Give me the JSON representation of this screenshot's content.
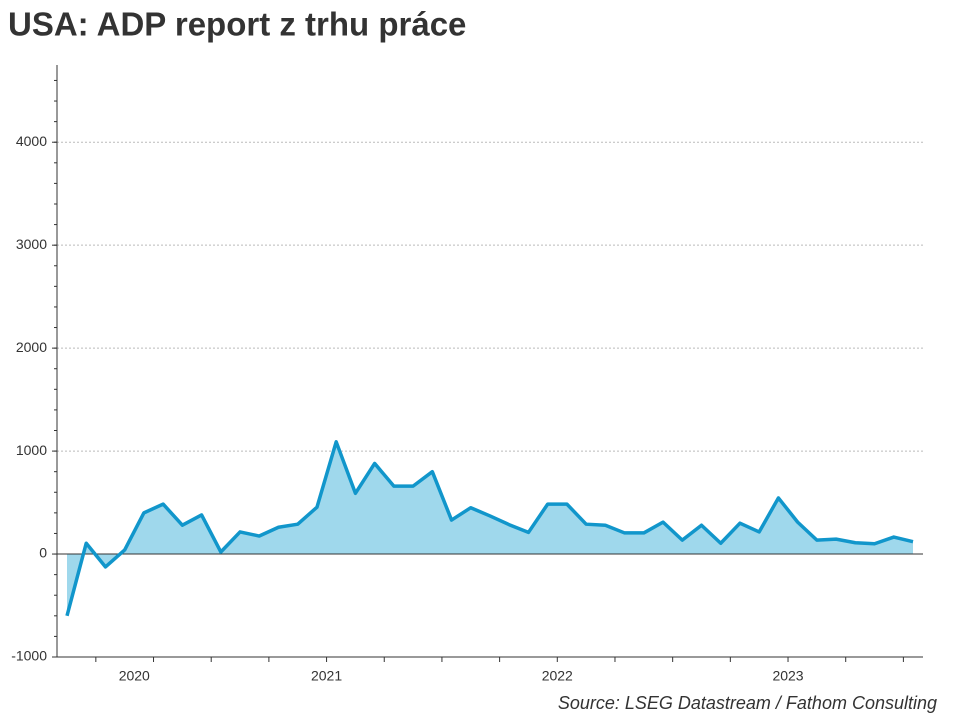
{
  "chart_data": {
    "type": "area",
    "title": "USA: ADP report z trhu práce",
    "source": "Source: LSEG Datastream / Fathom Consulting",
    "categories": [
      null,
      null,
      null,
      "2020",
      null,
      null,
      null,
      null,
      null,
      null,
      null,
      null,
      null,
      "2021",
      null,
      null,
      null,
      null,
      null,
      null,
      null,
      null,
      null,
      null,
      null,
      "2022",
      null,
      null,
      null,
      null,
      null,
      null,
      null,
      null,
      null,
      null,
      null,
      "2023",
      null,
      null,
      null,
      null,
      null,
      null,
      null
    ],
    "values": [
      -600,
      105,
      -125,
      40,
      400,
      485,
      280,
      380,
      20,
      215,
      175,
      260,
      290,
      455,
      1090,
      590,
      880,
      660,
      660,
      800,
      330,
      450,
      370,
      285,
      210,
      485,
      485,
      290,
      280,
      205,
      205,
      310,
      135,
      280,
      105,
      300,
      215,
      545,
      310,
      135,
      145,
      110,
      100,
      165,
      120
    ],
    "color": "#1196cb",
    "fill": "#9fd8ec",
    "ylim": [
      -1000,
      4750
    ],
    "yticks": [
      -1000,
      0,
      1000,
      2000,
      3000,
      4000
    ],
    "grid": true
  }
}
